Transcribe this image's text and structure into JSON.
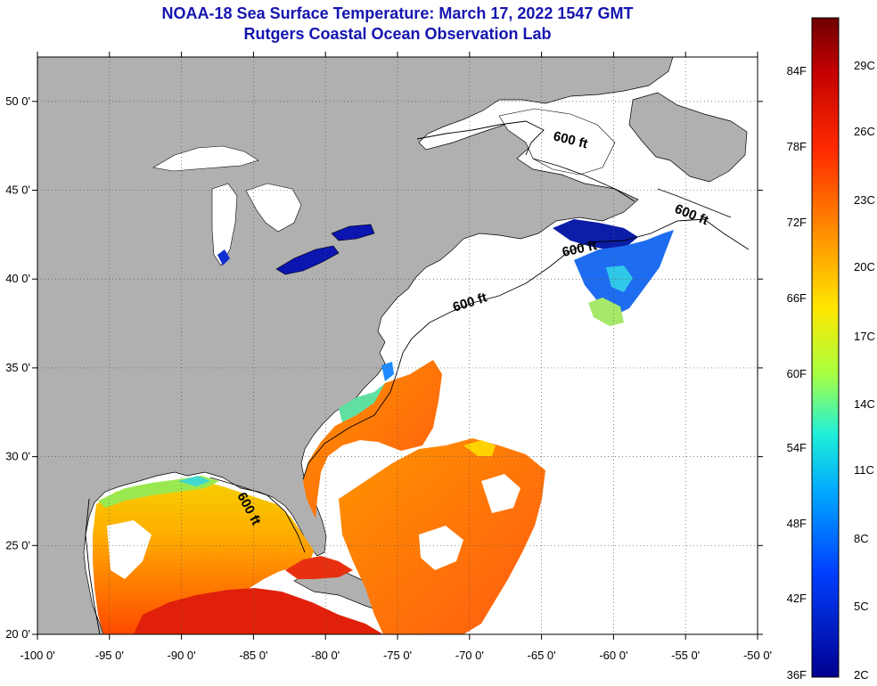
{
  "title": "NOAA-18 Sea Surface Temperature:  March 17, 2022 1547 GMT",
  "subtitle": "Rutgers Coastal Ocean Observation Lab",
  "map": {
    "lon_range": [
      -100,
      -50
    ],
    "lat_range": [
      20,
      52.5
    ],
    "lon_ticks": [
      "-100 0'",
      "-95 0'",
      "-90 0'",
      "-85 0'",
      "-80 0'",
      "-75 0'",
      "-70 0'",
      "-65 0'",
      "-60 0'",
      "-55 0'",
      "-50 0'"
    ],
    "lat_ticks": [
      "20 0'",
      "25 0'",
      "30 0'",
      "35 0'",
      "40 0'",
      "45 0'",
      "50 0'"
    ],
    "grid": "dotted",
    "land_color": "#b0b0b0",
    "no_data_color": "#ffffff",
    "contour_labels": [
      "600 ft",
      "600 ft",
      "600 ft",
      "600 ft",
      "600 ft"
    ]
  },
  "colorbar": {
    "fahrenheit_labels": [
      "84F",
      "78F",
      "72F",
      "66F",
      "60F",
      "54F",
      "48F",
      "42F",
      "36F"
    ],
    "celsius_labels": [
      "29C",
      "26C",
      "23C",
      "20C",
      "17C",
      "14C",
      "11C",
      "8C",
      "5C",
      "2C"
    ],
    "colors": [
      "#7a0000",
      "#d90000",
      "#ff4a00",
      "#ff9a00",
      "#ffee00",
      "#9cff4a",
      "#1ef0e0",
      "#0098ff",
      "#0030ff",
      "#00009a"
    ]
  }
}
